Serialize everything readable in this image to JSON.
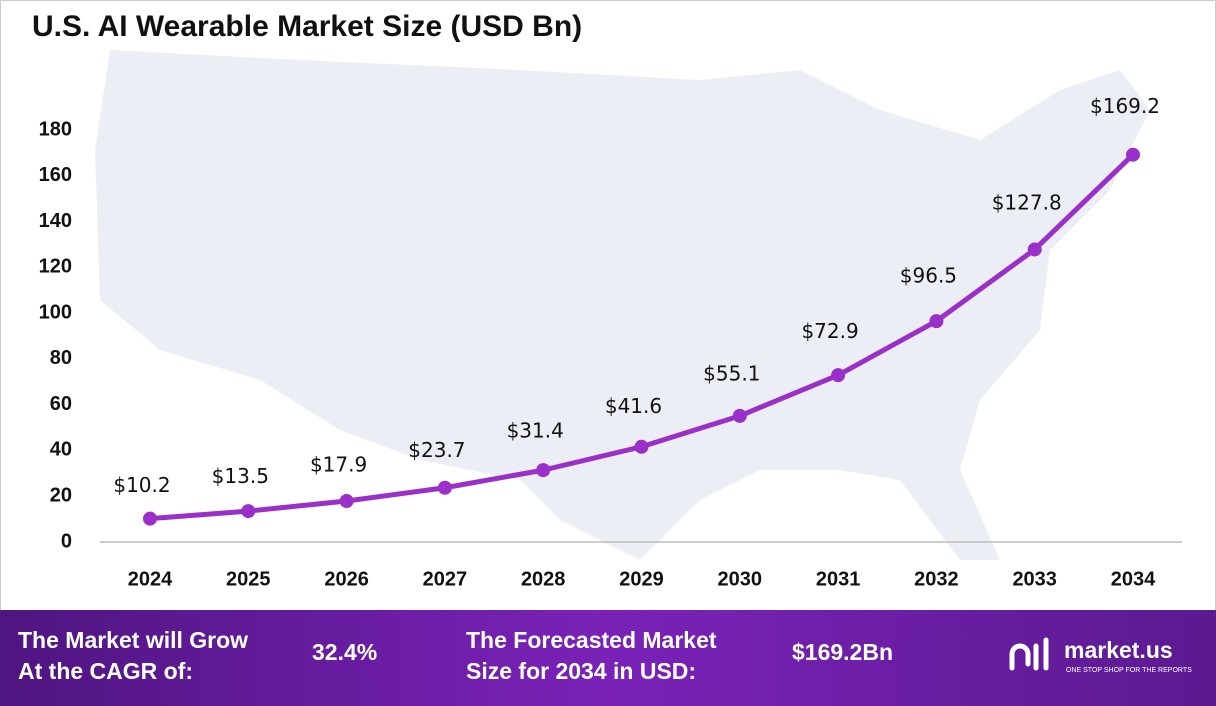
{
  "chart_data": {
    "type": "line",
    "title": "U.S. AI Wearable Market Size (USD Bn)",
    "categories": [
      "2024",
      "2025",
      "2026",
      "2027",
      "2028",
      "2029",
      "2030",
      "2031",
      "2032",
      "2033",
      "2034"
    ],
    "series": [
      {
        "name": "Market Size",
        "color": "#9a2fc9",
        "values": [
          10.2,
          13.5,
          17.9,
          23.7,
          31.4,
          41.6,
          55.1,
          72.9,
          96.5,
          127.8,
          169.2
        ],
        "value_labels": [
          "$10.2",
          "$13.5",
          "$17.9",
          "$23.7",
          "$31.4",
          "$41.6",
          "$55.1",
          "$72.9",
          "$96.5",
          "$127.8",
          "$169.2"
        ]
      }
    ],
    "ylim": [
      0,
      180
    ],
    "yticks": [
      0,
      20,
      40,
      60,
      80,
      100,
      120,
      140,
      160,
      180
    ],
    "grid": false
  },
  "footer": {
    "cagr_text": [
      "The Market will Grow",
      "At the CAGR of:"
    ],
    "cagr": "32.4%",
    "forecast_text": [
      "The Forecasted Market",
      "Size for 2034 in USD:"
    ],
    "forecast": "$169.2Bn",
    "brand": "market.us",
    "tagline": "ONE STOP SHOP FOR THE REPORTS"
  }
}
